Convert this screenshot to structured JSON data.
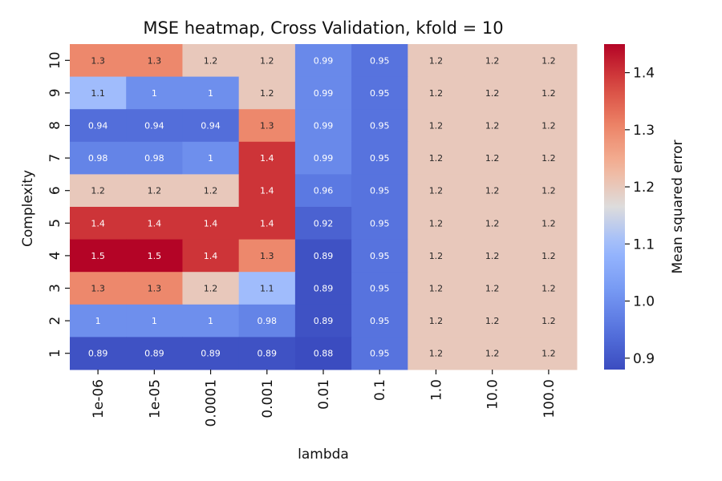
{
  "chart_data": {
    "type": "heatmap",
    "title": "MSE heatmap, Cross Validation, kfold = 10",
    "xlabel": "lambda",
    "ylabel": "Complexity",
    "x_categories": [
      "1e-06",
      "1e-05",
      "0.0001",
      "0.001",
      "0.01",
      "0.1",
      "1.0",
      "10.0",
      "100.0"
    ],
    "y_categories": [
      "10",
      "9",
      "8",
      "7",
      "6",
      "5",
      "4",
      "3",
      "2",
      "1"
    ],
    "values": [
      [
        1.3,
        1.3,
        1.2,
        1.2,
        0.99,
        0.95,
        1.2,
        1.2,
        1.2
      ],
      [
        1.1,
        1.0,
        1.0,
        1.2,
        0.99,
        0.95,
        1.2,
        1.2,
        1.2
      ],
      [
        0.94,
        0.94,
        0.94,
        1.3,
        0.99,
        0.95,
        1.2,
        1.2,
        1.2
      ],
      [
        0.98,
        0.98,
        1.0,
        1.4,
        0.99,
        0.95,
        1.2,
        1.2,
        1.2
      ],
      [
        1.2,
        1.2,
        1.2,
        1.4,
        0.96,
        0.95,
        1.2,
        1.2,
        1.2
      ],
      [
        1.4,
        1.4,
        1.4,
        1.4,
        0.92,
        0.95,
        1.2,
        1.2,
        1.2
      ],
      [
        1.5,
        1.5,
        1.4,
        1.3,
        0.89,
        0.95,
        1.2,
        1.2,
        1.2
      ],
      [
        1.3,
        1.3,
        1.2,
        1.1,
        0.89,
        0.95,
        1.2,
        1.2,
        1.2
      ],
      [
        1.0,
        1.0,
        1.0,
        0.98,
        0.89,
        0.95,
        1.2,
        1.2,
        1.2
      ],
      [
        0.89,
        0.89,
        0.89,
        0.89,
        0.88,
        0.95,
        1.2,
        1.2,
        1.2
      ]
    ],
    "cell_labels": [
      [
        "1.3",
        "1.3",
        "1.2",
        "1.2",
        "0.99",
        "0.95",
        "1.2",
        "1.2",
        "1.2"
      ],
      [
        "1.1",
        "1",
        "1",
        "1.2",
        "0.99",
        "0.95",
        "1.2",
        "1.2",
        "1.2"
      ],
      [
        "0.94",
        "0.94",
        "0.94",
        "1.3",
        "0.99",
        "0.95",
        "1.2",
        "1.2",
        "1.2"
      ],
      [
        "0.98",
        "0.98",
        "1",
        "1.4",
        "0.99",
        "0.95",
        "1.2",
        "1.2",
        "1.2"
      ],
      [
        "1.2",
        "1.2",
        "1.2",
        "1.4",
        "0.96",
        "0.95",
        "1.2",
        "1.2",
        "1.2"
      ],
      [
        "1.4",
        "1.4",
        "1.4",
        "1.4",
        "0.92",
        "0.95",
        "1.2",
        "1.2",
        "1.2"
      ],
      [
        "1.5",
        "1.5",
        "1.4",
        "1.3",
        "0.89",
        "0.95",
        "1.2",
        "1.2",
        "1.2"
      ],
      [
        "1.3",
        "1.3",
        "1.2",
        "1.1",
        "0.89",
        "0.95",
        "1.2",
        "1.2",
        "1.2"
      ],
      [
        "1",
        "1",
        "1",
        "0.98",
        "0.89",
        "0.95",
        "1.2",
        "1.2",
        "1.2"
      ],
      [
        "0.89",
        "0.89",
        "0.89",
        "0.89",
        "0.88",
        "0.95",
        "1.2",
        "1.2",
        "1.2"
      ]
    ],
    "colormap": "coolwarm",
    "colorbar": {
      "label": "Mean squared error",
      "range": [
        0.88,
        1.45
      ],
      "ticks": [
        "0.9",
        "1.0",
        "1.1",
        "1.2",
        "1.3",
        "1.4"
      ]
    }
  }
}
